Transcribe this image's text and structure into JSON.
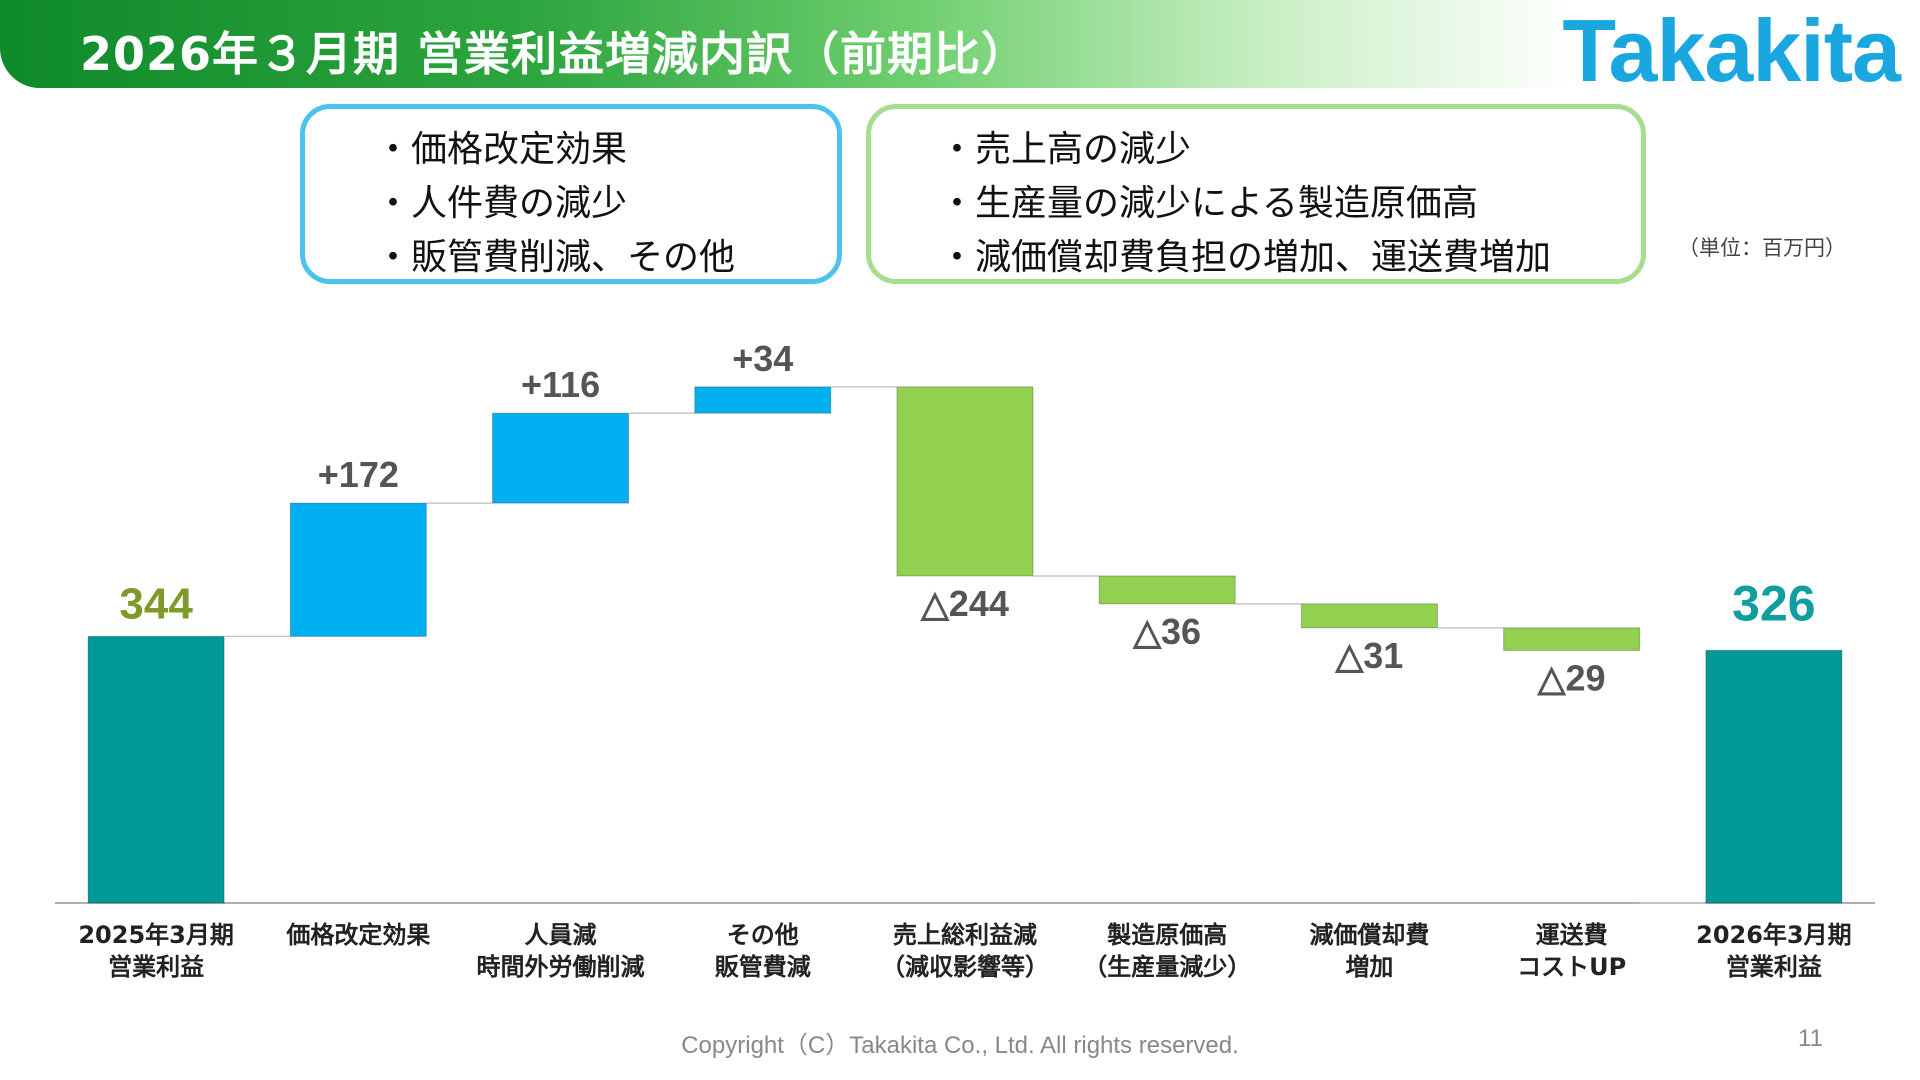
{
  "header": {
    "title": "2026年３月期 営業利益増減内訳（前期比）",
    "logo_text": "Takakita"
  },
  "box_left": {
    "items": [
      "・価格改定効果",
      "・人件費の減少",
      "・販管費削減、その他"
    ]
  },
  "box_right": {
    "items": [
      "・売上高の減少",
      "・生産量の減少による製造原価高",
      "・減価償却費負担の増加、運送費増加"
    ]
  },
  "unit_label": "（単位：百万円）",
  "colors": {
    "total": "#009999",
    "increase": "#00b0f0",
    "decrease": "#92d050",
    "label_start": "#7f9a2a",
    "label_end": "#109e9e",
    "label_delta": "#555555"
  },
  "chart_data": {
    "type": "waterfall",
    "ylim": [
      0,
      560
    ],
    "steps": [
      {
        "kind": "total",
        "category": [
          "2025年3月期",
          "営業利益"
        ],
        "value": 344,
        "label": "344"
      },
      {
        "kind": "increase",
        "category": [
          "価格改定効果"
        ],
        "value": 172,
        "label": "+172"
      },
      {
        "kind": "increase",
        "category": [
          "人員減",
          "時間外労働削減"
        ],
        "value": 116,
        "label": "+116"
      },
      {
        "kind": "increase",
        "category": [
          "その他",
          "販管費減"
        ],
        "value": 34,
        "label": "+34"
      },
      {
        "kind": "decrease",
        "category": [
          "売上総利益減",
          "（減収影響等）"
        ],
        "value": -244,
        "label": "△244"
      },
      {
        "kind": "decrease",
        "category": [
          "製造原価高",
          "（生産量減少）"
        ],
        "value": -36,
        "label": "△36"
      },
      {
        "kind": "decrease",
        "category": [
          "減価償却費",
          "増加"
        ],
        "value": -31,
        "label": "△31"
      },
      {
        "kind": "decrease",
        "category": [
          "運送費",
          "コストUP"
        ],
        "value": -29,
        "label": "△29"
      },
      {
        "kind": "total",
        "category": [
          "2026年3月期",
          "営業利益"
        ],
        "value": 326,
        "label": "326"
      }
    ]
  },
  "footer": {
    "copyright": "Copyright（C）Takakita Co., Ltd. All rights reserved.",
    "page": "11"
  }
}
